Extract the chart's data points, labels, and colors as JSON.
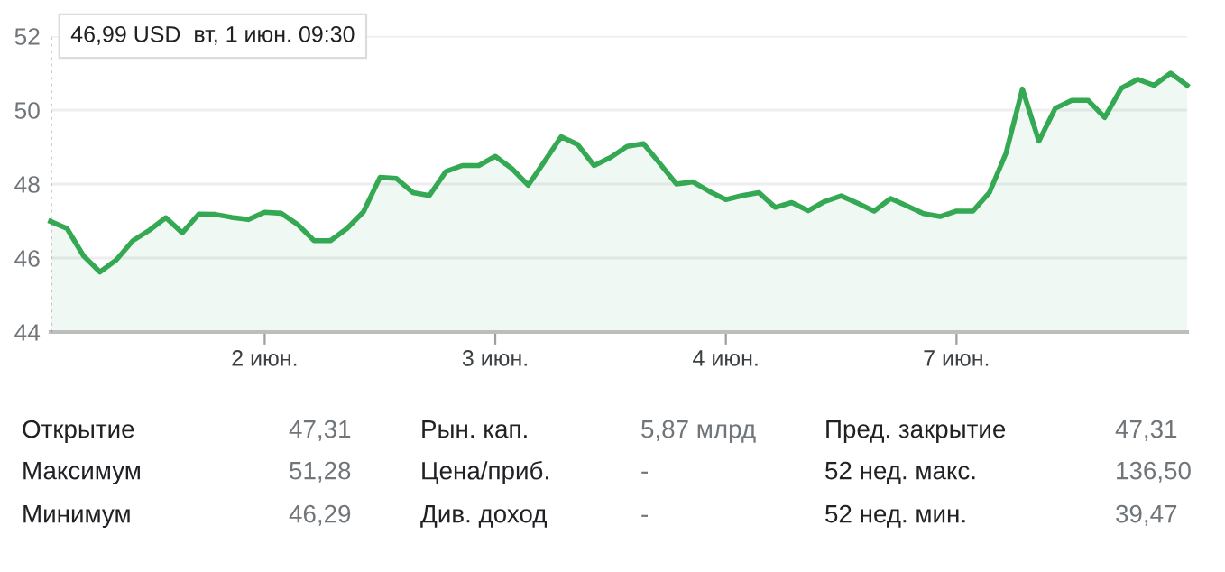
{
  "chart_data": {
    "type": "area",
    "categories": [
      null,
      null,
      null,
      null,
      null,
      null,
      null,
      null,
      null,
      null,
      null,
      null,
      null,
      "2 июн.",
      null,
      null,
      null,
      null,
      null,
      null,
      null,
      null,
      null,
      null,
      null,
      null,
      null,
      "3 июн.",
      null,
      null,
      null,
      null,
      null,
      null,
      null,
      null,
      null,
      null,
      null,
      null,
      null,
      "4 июн.",
      null,
      null,
      null,
      null,
      null,
      null,
      null,
      null,
      null,
      null,
      null,
      null,
      null,
      "7 июн.",
      null,
      null,
      null,
      null,
      null,
      null,
      null,
      null,
      null,
      null,
      null,
      null,
      null,
      null
    ],
    "series": [
      {
        "color": "#34a853",
        "values": [
          46.99,
          46.8,
          46.06,
          45.62,
          45.95,
          46.47,
          46.75,
          47.09,
          46.68,
          47.19,
          47.18,
          47.1,
          47.04,
          47.24,
          47.21,
          46.91,
          46.47,
          46.47,
          46.8,
          47.25,
          48.18,
          48.15,
          47.77,
          47.69,
          48.34,
          48.5,
          48.5,
          48.75,
          48.42,
          47.97,
          48.62,
          49.28,
          49.07,
          48.5,
          48.72,
          49.02,
          49.09,
          48.55,
          48.0,
          48.06,
          47.8,
          47.58,
          47.69,
          47.77,
          47.37,
          47.5,
          47.28,
          47.53,
          47.68,
          47.48,
          47.27,
          47.61,
          47.41,
          47.2,
          47.12,
          47.27,
          47.27,
          47.77,
          48.83,
          50.57,
          49.16,
          50.05,
          50.26,
          50.26,
          49.8,
          50.59,
          50.83,
          50.67,
          51.0,
          50.67
        ]
      }
    ],
    "ylim": [
      44,
      52
    ],
    "yticks": [
      44,
      46,
      48,
      50,
      52
    ],
    "grid": "y",
    "marker": "none",
    "line_style": "solid",
    "annotations": [
      "46,99 USD  вт, 1 июн. 09:30",
      "Открытие",
      "47,31",
      "Рын. кап.",
      "5,87 млрд",
      "Пред. закрытие",
      "47,31",
      "Максимум",
      "51,28",
      "Цена/приб.",
      "-",
      "52 нед. макс.",
      "136,50",
      "Минимум",
      "46,29",
      "Див. доход",
      "-",
      "52 нед. мин.",
      "39,47"
    ]
  }
}
